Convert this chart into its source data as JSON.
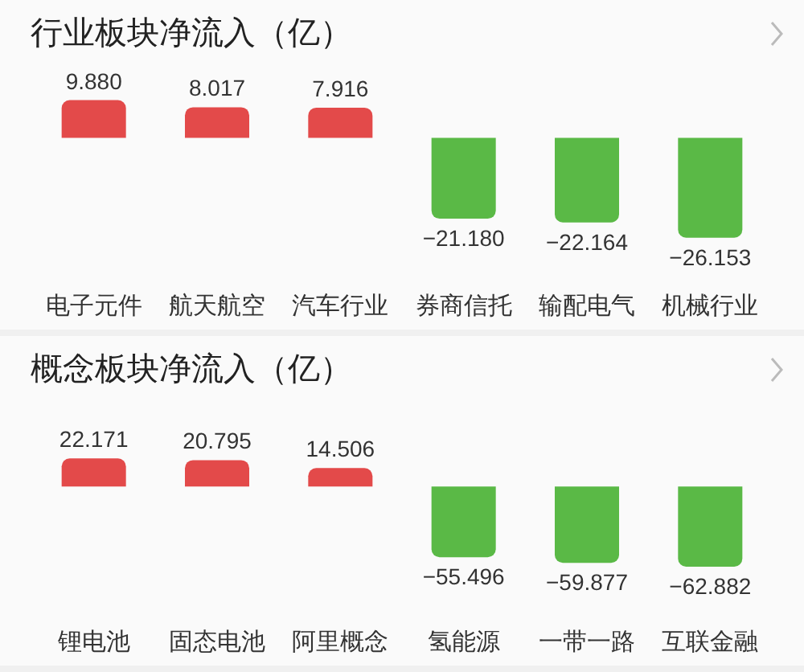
{
  "chart_data": [
    {
      "type": "bar",
      "title": "行业板块净流入（亿）",
      "categories": [
        "电子元件",
        "航天航空",
        "汽车行业",
        "券商信托",
        "输配电气",
        "机械行业"
      ],
      "values": [
        9.88,
        8.017,
        7.916,
        -21.18,
        -22.164,
        -26.153
      ],
      "value_labels": [
        "9.880",
        "8.017",
        "7.916",
        "−21.180",
        "−22.164",
        "−26.153"
      ],
      "colors": [
        "#e34a4a",
        "#e34a4a",
        "#e34a4a",
        "#5ab946",
        "#5ab946",
        "#5ab946"
      ]
    },
    {
      "type": "bar",
      "title": "概念板块净流入（亿）",
      "categories": [
        "锂电池",
        "固态电池",
        "阿里概念",
        "氢能源",
        "一带一路",
        "互联金融"
      ],
      "values": [
        22.171,
        20.795,
        14.506,
        -55.496,
        -59.877,
        -62.882
      ],
      "value_labels": [
        "22.171",
        "20.795",
        "14.506",
        "−55.496",
        "−59.877",
        "−62.882"
      ],
      "colors": [
        "#e34a4a",
        "#e34a4a",
        "#e34a4a",
        "#5ab946",
        "#5ab946",
        "#5ab946"
      ]
    }
  ]
}
